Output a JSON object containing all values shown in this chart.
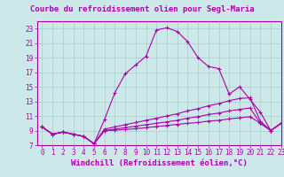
{
  "title": "Courbe du refroidissement olien pour Segl-Maria",
  "xlabel": "Windchill (Refroidissement éolien,°C)",
  "bg_color": "#cce8e8",
  "grid_color": "#aacccc",
  "line_color": "#aa00aa",
  "xlim": [
    -0.5,
    23
  ],
  "ylim": [
    7,
    24
  ],
  "xticks": [
    0,
    1,
    2,
    3,
    4,
    5,
    6,
    7,
    8,
    9,
    10,
    11,
    12,
    13,
    14,
    15,
    16,
    17,
    18,
    19,
    20,
    21,
    22,
    23
  ],
  "yticks": [
    7,
    9,
    11,
    13,
    15,
    17,
    19,
    21,
    23
  ],
  "line1_x": [
    0,
    1,
    2,
    3,
    4,
    5,
    6,
    7,
    8,
    9,
    10,
    11,
    12,
    13,
    14,
    15,
    16,
    17,
    18,
    19,
    20,
    21,
    22,
    23
  ],
  "line1_y": [
    9.5,
    8.5,
    8.8,
    8.5,
    8.2,
    7.2,
    10.5,
    14.2,
    16.8,
    18.0,
    19.2,
    22.8,
    23.1,
    22.6,
    21.2,
    19.0,
    17.8,
    17.5,
    14.0,
    15.0,
    13.3,
    11.5,
    9.0,
    10.0
  ],
  "line2_x": [
    0,
    1,
    2,
    3,
    4,
    5,
    6,
    7,
    8,
    9,
    10,
    11,
    12,
    13,
    14,
    15,
    16,
    17,
    18,
    19,
    20,
    21,
    22,
    23
  ],
  "line2_y": [
    9.5,
    8.5,
    8.8,
    8.5,
    8.2,
    7.2,
    9.2,
    9.5,
    9.8,
    10.1,
    10.4,
    10.7,
    11.0,
    11.3,
    11.7,
    12.0,
    12.4,
    12.7,
    13.1,
    13.4,
    13.5,
    10.3,
    9.0,
    10.0
  ],
  "line3_x": [
    0,
    1,
    2,
    3,
    4,
    5,
    6,
    7,
    8,
    9,
    10,
    11,
    12,
    13,
    14,
    15,
    16,
    17,
    18,
    19,
    20,
    21,
    22,
    23
  ],
  "line3_y": [
    9.5,
    8.5,
    8.8,
    8.5,
    8.2,
    7.2,
    9.0,
    9.2,
    9.4,
    9.6,
    9.8,
    10.0,
    10.2,
    10.4,
    10.7,
    10.9,
    11.2,
    11.4,
    11.7,
    11.9,
    12.1,
    10.0,
    9.0,
    10.0
  ],
  "line4_x": [
    0,
    1,
    2,
    3,
    4,
    5,
    6,
    7,
    8,
    9,
    10,
    11,
    12,
    13,
    14,
    15,
    16,
    17,
    18,
    19,
    20,
    21,
    22,
    23
  ],
  "line4_y": [
    9.5,
    8.5,
    8.8,
    8.5,
    8.2,
    7.2,
    9.0,
    9.05,
    9.15,
    9.25,
    9.4,
    9.55,
    9.7,
    9.85,
    10.0,
    10.1,
    10.3,
    10.4,
    10.6,
    10.75,
    10.9,
    10.0,
    9.0,
    10.0
  ],
  "title_fontsize": 6.5,
  "tick_fontsize": 5.5,
  "xlabel_fontsize": 6.5
}
